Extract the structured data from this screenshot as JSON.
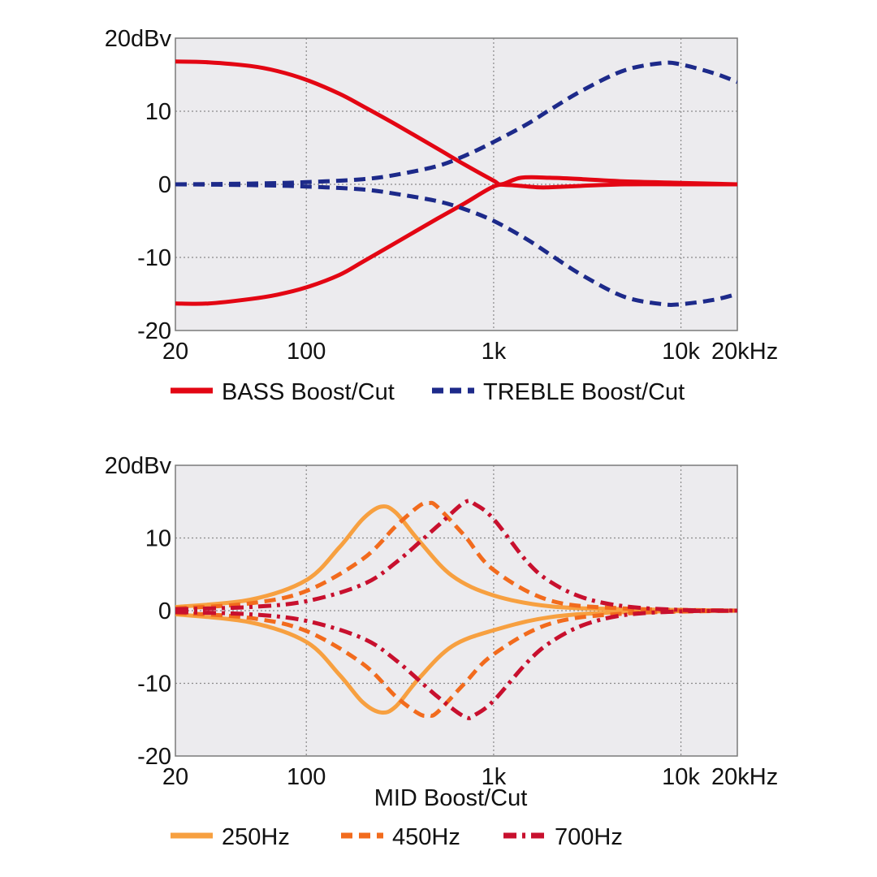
{
  "chart_data": [
    {
      "type": "line",
      "x_scale": "log",
      "xlim": [
        20,
        20000
      ],
      "ylim": [
        -20,
        20
      ],
      "grid": true,
      "x_ticks": [
        20,
        100,
        1000,
        10000,
        20000
      ],
      "x_tick_labels": [
        "20",
        "100",
        "1k",
        "10k",
        "20kHz"
      ],
      "y_ticks": [
        20,
        10,
        0,
        -10,
        -20
      ],
      "y_tick_labels": [
        "20dBv",
        "10",
        "0",
        "-10",
        "-20"
      ],
      "xlabel": "",
      "legend_position": "bottom",
      "series": [
        {
          "name": "BASS Boost/Cut",
          "color": "#e30613",
          "dash": "solid",
          "legend": true,
          "x": [
            20,
            30,
            50,
            70,
            100,
            150,
            200,
            300,
            500,
            700,
            1000,
            1100,
            1400,
            2000,
            3000,
            5000,
            10000,
            20000
          ],
          "y": [
            16.8,
            16.7,
            16.2,
            15.5,
            14.3,
            12.4,
            10.7,
            8.2,
            4.9,
            2.7,
            0.5,
            0.0,
            0.9,
            0.9,
            0.7,
            0.4,
            0.2,
            0.0
          ]
        },
        {
          "name": "",
          "color": "#e30613",
          "dash": "solid",
          "legend": false,
          "x": [
            20,
            30,
            50,
            70,
            100,
            150,
            200,
            300,
            500,
            700,
            1000,
            1200,
            1700,
            2000,
            3000,
            5000,
            10000,
            20000
          ],
          "y": [
            -16.3,
            -16.3,
            -15.7,
            -15.1,
            -14.1,
            -12.4,
            -10.6,
            -8.0,
            -4.7,
            -2.6,
            -0.3,
            -0.1,
            -0.4,
            -0.4,
            -0.2,
            0.0,
            0.0,
            0.0
          ]
        },
        {
          "name": "TREBLE Boost/Cut",
          "color": "#1d2a8a",
          "dash": "dashed",
          "legend": true,
          "x": [
            20,
            50,
            100,
            200,
            300,
            500,
            700,
            1000,
            1500,
            2000,
            3000,
            5000,
            8000,
            10000,
            15000,
            20000
          ],
          "y": [
            0.0,
            0.1,
            0.3,
            0.7,
            1.3,
            2.5,
            3.9,
            5.8,
            8.2,
            10.2,
            12.9,
            15.6,
            16.6,
            16.4,
            15.2,
            14.0
          ]
        },
        {
          "name": "",
          "color": "#1d2a8a",
          "dash": "dashed",
          "legend": false,
          "x": [
            20,
            50,
            100,
            200,
            300,
            500,
            700,
            1000,
            1500,
            2000,
            3000,
            5000,
            8000,
            10000,
            15000,
            20000
          ],
          "y": [
            0.0,
            -0.1,
            -0.3,
            -0.7,
            -1.3,
            -2.3,
            -3.4,
            -5.0,
            -7.5,
            -9.6,
            -12.5,
            -15.4,
            -16.4,
            -16.4,
            -15.8,
            -15.0
          ]
        }
      ]
    },
    {
      "type": "line",
      "x_scale": "log",
      "xlim": [
        20,
        20000
      ],
      "ylim": [
        -20,
        20
      ],
      "grid": true,
      "x_ticks": [
        20,
        100,
        1000,
        10000,
        20000
      ],
      "x_tick_labels": [
        "20",
        "100",
        "1k",
        "10k",
        "20kHz"
      ],
      "y_ticks": [
        20,
        10,
        0,
        -10,
        -20
      ],
      "y_tick_labels": [
        "20dBv",
        "10",
        "0",
        "-10",
        "-20"
      ],
      "xlabel": "MID Boost/Cut",
      "legend_position": "bottom",
      "series": [
        {
          "name": "250Hz",
          "color": "#f7a040",
          "dash": "solid",
          "legend": true,
          "x": [
            20,
            50,
            100,
            150,
            200,
            250,
            300,
            400,
            600,
            1000,
            2000,
            5000,
            20000
          ],
          "y": [
            0.5,
            1.5,
            4.2,
            8.7,
            12.6,
            14.3,
            13.5,
            9.6,
            4.8,
            2.1,
            0.6,
            0.2,
            0.0
          ]
        },
        {
          "name": "",
          "color": "#f7a040",
          "dash": "solid",
          "legend": false,
          "x": [
            20,
            50,
            100,
            150,
            200,
            250,
            300,
            400,
            600,
            1000,
            2000,
            5000,
            20000
          ],
          "y": [
            -0.5,
            -1.6,
            -4.3,
            -8.8,
            -12.6,
            -14.0,
            -13.2,
            -9.3,
            -4.9,
            -2.7,
            -0.9,
            -0.2,
            0.0
          ]
        },
        {
          "name": "450Hz",
          "color": "#f26b1d",
          "dash": "dashed",
          "legend": true,
          "x": [
            20,
            50,
            100,
            200,
            300,
            400,
            450,
            500,
            700,
            1000,
            2000,
            5000,
            20000
          ],
          "y": [
            0.3,
            1.0,
            2.7,
            7.1,
            11.6,
            14.4,
            14.8,
            14.3,
            10.3,
            5.6,
            1.4,
            0.3,
            0.0
          ]
        },
        {
          "name": "",
          "color": "#f26b1d",
          "dash": "dashed",
          "legend": false,
          "x": [
            20,
            50,
            100,
            200,
            300,
            400,
            450,
            500,
            700,
            1000,
            2000,
            5000,
            20000
          ],
          "y": [
            -0.3,
            -1.0,
            -2.8,
            -7.3,
            -11.8,
            -14.2,
            -14.4,
            -14.0,
            -10.0,
            -6.0,
            -1.8,
            -0.4,
            0.0
          ]
        },
        {
          "name": "700Hz",
          "color": "#c8102e",
          "dash": "dashdot",
          "legend": true,
          "x": [
            20,
            50,
            100,
            200,
            300,
            500,
            700,
            800,
            1000,
            1500,
            2000,
            3000,
            5000,
            10000,
            20000
          ],
          "y": [
            0.2,
            0.5,
            1.3,
            3.6,
            6.6,
            11.6,
            14.9,
            14.6,
            12.6,
            6.8,
            4.0,
            1.8,
            0.6,
            0.1,
            0.0
          ]
        },
        {
          "name": "",
          "color": "#c8102e",
          "dash": "dashdot",
          "legend": false,
          "x": [
            20,
            50,
            100,
            200,
            300,
            500,
            700,
            800,
            1000,
            1500,
            2000,
            3000,
            5000,
            10000,
            20000
          ],
          "y": [
            -0.2,
            -0.5,
            -1.4,
            -3.8,
            -6.8,
            -11.8,
            -14.6,
            -14.3,
            -12.4,
            -7.2,
            -4.4,
            -2.0,
            -0.6,
            -0.1,
            0.0
          ]
        }
      ]
    }
  ]
}
